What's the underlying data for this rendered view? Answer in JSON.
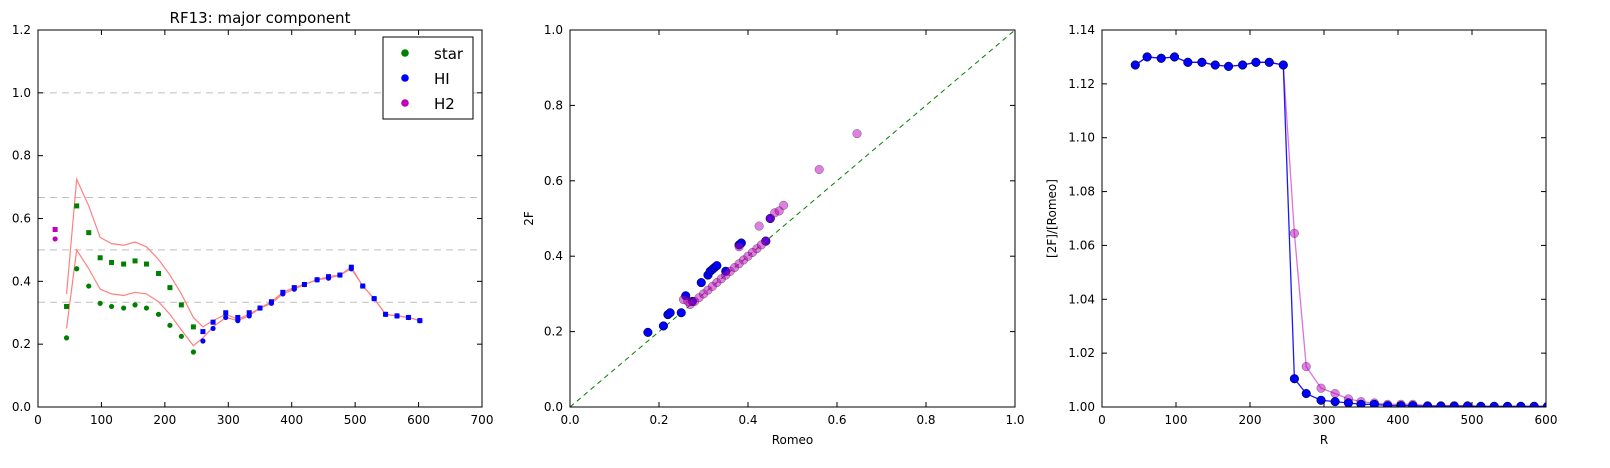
{
  "chart_data": [
    {
      "type": "scatter",
      "title": "RF13: major component",
      "xlabel": "",
      "ylabel": "",
      "xlim": [
        0,
        700
      ],
      "ylim": [
        0,
        1.2
      ],
      "xticks": [
        0,
        100,
        200,
        300,
        400,
        500,
        600,
        700
      ],
      "yticks": [
        0.0,
        0.2,
        0.4,
        0.6,
        0.8,
        1.0,
        1.2
      ],
      "grid": false,
      "legend": "top-right",
      "reference_lines": [
        1.0,
        0.6667,
        0.5,
        0.3333
      ],
      "series": [
        {
          "name": "star",
          "color": "#008000",
          "marker": "circle",
          "x": [
            45,
            61,
            80,
            98,
            116,
            135,
            153,
            171,
            190,
            208,
            226,
            245
          ],
          "y": [
            0.22,
            0.44,
            0.385,
            0.33,
            0.32,
            0.315,
            0.325,
            0.315,
            0.295,
            0.26,
            0.225,
            0.175
          ]
        },
        {
          "name": "HI",
          "color": "#0000ff",
          "marker": "circle",
          "x": [
            260,
            276,
            296,
            315,
            333,
            350,
            368,
            386,
            404,
            420,
            440,
            458,
            476,
            494,
            512,
            530,
            548,
            566,
            584,
            602
          ],
          "y": [
            0.21,
            0.25,
            0.285,
            0.275,
            0.29,
            0.315,
            0.33,
            0.36,
            0.375,
            0.39,
            0.405,
            0.41,
            0.42,
            0.44,
            0.385,
            0.345,
            0.295,
            0.29,
            0.285,
            0.275
          ]
        },
        {
          "name": "H2",
          "color": "#bf00bf",
          "marker": "circle",
          "x": [
            27
          ],
          "y": [
            0.535
          ]
        },
        {
          "name": "",
          "color": "#008000",
          "marker": "square",
          "x": [
            45,
            61,
            80,
            98,
            116,
            135,
            153,
            171,
            190,
            208,
            226,
            245
          ],
          "y": [
            0.32,
            0.64,
            0.555,
            0.475,
            0.46,
            0.455,
            0.465,
            0.455,
            0.425,
            0.38,
            0.325,
            0.255
          ]
        },
        {
          "name": "",
          "color": "#0000ff",
          "marker": "square",
          "x": [
            260,
            276,
            296,
            315,
            333,
            350,
            368,
            386,
            404,
            420,
            440,
            458,
            476,
            494,
            512,
            530,
            548,
            566,
            584,
            602
          ],
          "y": [
            0.24,
            0.27,
            0.3,
            0.285,
            0.3,
            0.315,
            0.335,
            0.365,
            0.38,
            0.39,
            0.405,
            0.415,
            0.42,
            0.445,
            0.385,
            0.345,
            0.295,
            0.29,
            0.285,
            0.275
          ]
        },
        {
          "name": "",
          "color": "#bf00bf",
          "marker": "square",
          "x": [
            27
          ],
          "y": [
            0.565
          ]
        }
      ],
      "lines": [
        {
          "name": "",
          "color": "#ff8080",
          "x": [
            45,
            61,
            80,
            98,
            116,
            135,
            153,
            171,
            190,
            208,
            226,
            245,
            260,
            276,
            296,
            315,
            333,
            350,
            368,
            386,
            404,
            420,
            440,
            458,
            476,
            494,
            512,
            530,
            548,
            566,
            584,
            602
          ],
          "y": [
            0.36,
            0.725,
            0.64,
            0.54,
            0.52,
            0.515,
            0.525,
            0.51,
            0.47,
            0.42,
            0.36,
            0.285,
            0.255,
            0.275,
            0.295,
            0.28,
            0.295,
            0.315,
            0.335,
            0.365,
            0.38,
            0.39,
            0.405,
            0.415,
            0.42,
            0.445,
            0.385,
            0.345,
            0.295,
            0.29,
            0.285,
            0.275
          ]
        },
        {
          "name": "",
          "color": "#ff8080",
          "x": [
            45,
            61,
            80,
            98,
            116,
            135,
            153,
            171,
            190,
            208,
            226,
            245,
            260,
            276,
            296,
            315,
            333,
            350,
            368,
            386,
            404,
            420,
            440,
            458,
            476,
            494,
            512,
            530,
            548,
            566,
            584,
            602
          ],
          "y": [
            0.25,
            0.5,
            0.44,
            0.375,
            0.36,
            0.355,
            0.365,
            0.36,
            0.335,
            0.295,
            0.245,
            0.195,
            0.22,
            0.255,
            0.285,
            0.275,
            0.29,
            0.315,
            0.33,
            0.36,
            0.375,
            0.39,
            0.405,
            0.41,
            0.42,
            0.44,
            0.385,
            0.345,
            0.295,
            0.29,
            0.285,
            0.275
          ]
        }
      ]
    },
    {
      "type": "scatter",
      "title": "",
      "xlabel": "Romeo",
      "ylabel": "2F",
      "xlim": [
        0,
        1.0
      ],
      "ylim": [
        0,
        1.0
      ],
      "xticks": [
        0.0,
        0.2,
        0.4,
        0.6,
        0.8,
        1.0
      ],
      "yticks": [
        0.0,
        0.2,
        0.4,
        0.6,
        0.8,
        1.0
      ],
      "grid": false,
      "reference_lines": [
        "y = x"
      ],
      "series": [
        {
          "name": "",
          "color": "#0000ff",
          "x": [
            0.175,
            0.21,
            0.22,
            0.225,
            0.25,
            0.26,
            0.275,
            0.295,
            0.31,
            0.315,
            0.32,
            0.325,
            0.33,
            0.35,
            0.38,
            0.385,
            0.44,
            0.45
          ],
          "y": [
            0.198,
            0.215,
            0.245,
            0.25,
            0.25,
            0.295,
            0.28,
            0.33,
            0.35,
            0.36,
            0.365,
            0.37,
            0.375,
            0.36,
            0.43,
            0.435,
            0.44,
            0.5
          ]
        },
        {
          "name": "",
          "color": "#bf00bf",
          "x": [
            0.255,
            0.265,
            0.27,
            0.28,
            0.29,
            0.3,
            0.31,
            0.32,
            0.33,
            0.34,
            0.35,
            0.36,
            0.37,
            0.38,
            0.39,
            0.4,
            0.41,
            0.42,
            0.43,
            0.44,
            0.45,
            0.46,
            0.47,
            0.48,
            0.38,
            0.425,
            0.56,
            0.645
          ],
          "y": [
            0.285,
            0.28,
            0.272,
            0.28,
            0.29,
            0.3,
            0.31,
            0.32,
            0.33,
            0.34,
            0.35,
            0.36,
            0.37,
            0.38,
            0.39,
            0.4,
            0.41,
            0.42,
            0.43,
            0.44,
            0.5,
            0.515,
            0.52,
            0.535,
            0.425,
            0.48,
            0.63,
            0.725
          ]
        }
      ]
    },
    {
      "type": "line",
      "title": "",
      "xlabel": "R",
      "ylabel": "[2F]/[Romeo]",
      "xlim": [
        0,
        600
      ],
      "ylim": [
        1.0,
        1.14
      ],
      "xticks": [
        0,
        100,
        200,
        300,
        400,
        500,
        600
      ],
      "yticks": [
        1.0,
        1.02,
        1.04,
        1.06,
        1.08,
        1.1,
        1.12,
        1.14
      ],
      "grid": false,
      "series": [
        {
          "name": "",
          "color": "#bf00bf",
          "x": [
            45,
            61,
            80,
            98,
            116,
            135,
            153,
            171,
            190,
            208,
            226,
            245,
            260,
            276,
            296,
            315,
            333,
            350,
            368,
            386,
            404,
            420,
            440,
            458,
            476,
            494,
            512,
            530,
            548,
            566,
            584,
            602
          ],
          "y": [
            1.127,
            1.13,
            1.1295,
            1.13,
            1.128,
            1.128,
            1.127,
            1.1265,
            1.127,
            1.128,
            1.128,
            1.127,
            1.0645,
            1.015,
            1.007,
            1.005,
            1.003,
            1.002,
            1.0015,
            1.001,
            1.001,
            1.001,
            1.0005,
            1.0005,
            1.0005,
            1.0005,
            1.0003,
            1.0003,
            1.0003,
            1.0003,
            1.0003,
            1.0003
          ]
        },
        {
          "name": "",
          "color": "#0000ff",
          "x": [
            45,
            61,
            80,
            98,
            116,
            135,
            153,
            171,
            190,
            208,
            226,
            245,
            260,
            276,
            296,
            315,
            333,
            350,
            368,
            386,
            404,
            420,
            440,
            458,
            476,
            494,
            512,
            530,
            548,
            566,
            584,
            602
          ],
          "y": [
            1.127,
            1.13,
            1.1295,
            1.13,
            1.128,
            1.128,
            1.127,
            1.1265,
            1.127,
            1.128,
            1.128,
            1.127,
            1.0105,
            1.005,
            1.0025,
            1.002,
            1.0015,
            1.001,
            1.001,
            1.0005,
            1.0005,
            1.0005,
            1.0003,
            1.0003,
            1.0003,
            1.0003,
            1.0002,
            1.0002,
            1.0002,
            1.0002,
            1.0002,
            1.0002
          ]
        }
      ]
    }
  ]
}
